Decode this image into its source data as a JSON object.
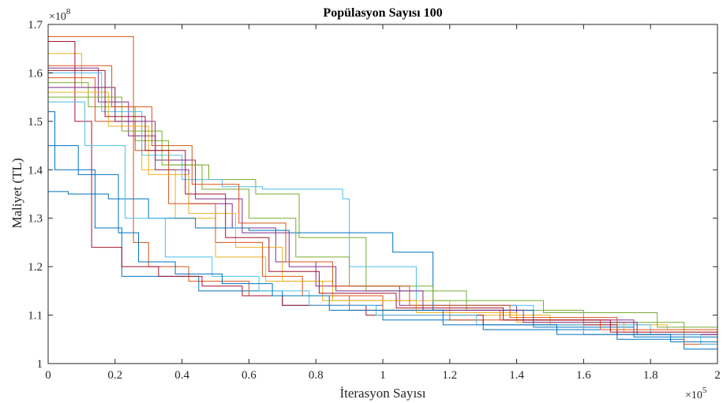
{
  "chart_data": {
    "type": "line",
    "title": "Popülasyon Sayısı 100",
    "xlabel": "İterasyon Sayısı",
    "ylabel": "Maliyet (TL)",
    "x_exponent_label": "×10",
    "x_exponent_power": "5",
    "y_exponent_label": "×10",
    "y_exponent_power": "8",
    "x_scale": 100000,
    "y_scale": 100000000,
    "xlim": [
      0,
      200000
    ],
    "ylim": [
      100000000,
      170000000
    ],
    "x_ticks": [
      0,
      20000,
      40000,
      60000,
      80000,
      100000,
      120000,
      140000,
      160000,
      180000,
      200000
    ],
    "x_tick_labels": [
      "0",
      "0.2",
      "0.4",
      "0.6",
      "0.8",
      "1",
      "1.2",
      "1.4",
      "1.6",
      "1.8",
      "2"
    ],
    "y_ticks": [
      100000000,
      110000000,
      120000000,
      130000000,
      140000000,
      150000000,
      160000000,
      170000000
    ],
    "y_tick_labels": [
      "1",
      "1.1",
      "1.2",
      "1.3",
      "1.4",
      "1.5",
      "1.6",
      "1.7"
    ],
    "grid": false,
    "legend": "none",
    "line_style": "step",
    "series": [
      {
        "color": "#0072BD",
        "x": [
          0,
          2000,
          14000,
          22000,
          45000,
          70000,
          100000,
          130000,
          170000,
          190000,
          200000
        ],
        "y": [
          152000000,
          140000000,
          128000000,
          118000000,
          115000000,
          112000000,
          109000000,
          107000000,
          105000000,
          103000000,
          102500000
        ]
      },
      {
        "color": "#D95319",
        "x": [
          0,
          24000,
          25500,
          30000,
          42000,
          60000,
          90000,
          120000,
          160000,
          190000,
          200000
        ],
        "y": [
          167500000,
          167500000,
          125000000,
          120000000,
          117000000,
          114000000,
          111000000,
          109000000,
          106000000,
          104000000,
          103000000
        ]
      },
      {
        "color": "#EDB120",
        "x": [
          0,
          10000,
          20000,
          28000,
          38000,
          50000,
          65000,
          85000,
          120000,
          150000,
          185000,
          200000
        ],
        "y": [
          164000000,
          157000000,
          150000000,
          140000000,
          130000000,
          122000000,
          117000000,
          113000000,
          110000000,
          108000000,
          107000000,
          106000000
        ]
      },
      {
        "color": "#7E2F8E",
        "x": [
          0,
          15000,
          24000,
          32000,
          42000,
          55000,
          68000,
          80000,
          105000,
          140000,
          175000,
          200000
        ],
        "y": [
          161000000,
          154000000,
          147000000,
          140000000,
          133000000,
          128000000,
          121000000,
          116000000,
          112000000,
          109000000,
          106000000,
          104000000
        ]
      },
      {
        "color": "#77AC30",
        "x": [
          0,
          12000,
          26000,
          36000,
          48000,
          62000,
          75000,
          95000,
          125000,
          160000,
          190000,
          200000
        ],
        "y": [
          158000000,
          153000000,
          146000000,
          141000000,
          138000000,
          135000000,
          126000000,
          115000000,
          111000000,
          108500000,
          106000000,
          105000000
        ]
      },
      {
        "color": "#4DBEEE",
        "x": [
          0,
          16000,
          28000,
          40000,
          52000,
          64000,
          80000,
          88000,
          90000,
          110000,
          145000,
          180000,
          200000
        ],
        "y": [
          160000000,
          152000000,
          143000000,
          138000000,
          136500000,
          136000000,
          136000000,
          134000000,
          120000000,
          112000000,
          108000000,
          106000000,
          104000000
        ]
      },
      {
        "color": "#A2142F",
        "x": [
          0,
          8000,
          13000,
          22000,
          33000,
          46000,
          58000,
          70000,
          95000,
          130000,
          170000,
          200000
        ],
        "y": [
          166500000,
          150000000,
          124000000,
          120000000,
          118000000,
          116000000,
          114000000,
          112000000,
          110000000,
          108000000,
          106000000,
          103500000
        ]
      },
      {
        "color": "#0072BD",
        "x": [
          0,
          6000,
          18000,
          30000,
          44000,
          60000,
          72000,
          88000,
          103000,
          115000,
          145000,
          175000,
          200000
        ],
        "y": [
          135500000,
          135000000,
          134000000,
          130000000,
          128000000,
          127500000,
          127000000,
          127000000,
          123000000,
          111000000,
          107500000,
          105500000,
          103000000
        ]
      },
      {
        "color": "#D95319",
        "x": [
          0,
          14000,
          26000,
          36000,
          50000,
          64000,
          76000,
          100000,
          135000,
          165000,
          200000
        ],
        "y": [
          159000000,
          150000000,
          144000000,
          133000000,
          125000000,
          118000000,
          114000000,
          111000000,
          109000000,
          107000000,
          105000000
        ]
      },
      {
        "color": "#EDB120",
        "x": [
          0,
          18000,
          30000,
          42000,
          56000,
          70000,
          82000,
          110000,
          140000,
          172000,
          200000
        ],
        "y": [
          156000000,
          149000000,
          139000000,
          131000000,
          124000000,
          117000000,
          113000000,
          110500000,
          108500000,
          106500000,
          105500000
        ]
      },
      {
        "color": "#7E2F8E",
        "x": [
          0,
          20000,
          32000,
          44000,
          58000,
          72000,
          86000,
          112000,
          142000,
          176000,
          200000
        ],
        "y": [
          157000000,
          150000000,
          142000000,
          134000000,
          127000000,
          120000000,
          115000000,
          111000000,
          108500000,
          106000000,
          104000000
        ]
      },
      {
        "color": "#77AC30",
        "x": [
          0,
          22000,
          34000,
          46000,
          60000,
          74000,
          90000,
          115000,
          148000,
          182000,
          200000
        ],
        "y": [
          155000000,
          148000000,
          141000000,
          136000000,
          130000000,
          122000000,
          116000000,
          113000000,
          110500000,
          107500000,
          105500000
        ]
      },
      {
        "color": "#4DBEEE",
        "x": [
          0,
          11000,
          23000,
          35000,
          49000,
          63000,
          78000,
          98000,
          128000,
          160000,
          195000,
          200000
        ],
        "y": [
          154000000,
          145000000,
          130000000,
          122000000,
          118000000,
          115000000,
          112000000,
          110000000,
          108000000,
          106000000,
          104000000,
          103500000
        ]
      },
      {
        "color": "#A2142F",
        "x": [
          0,
          17000,
          29000,
          41000,
          53000,
          66000,
          81000,
          104000,
          136000,
          168000,
          200000
        ],
        "y": [
          160500000,
          151000000,
          144000000,
          135000000,
          126000000,
          119000000,
          114500000,
          111500000,
          109000000,
          106500000,
          103000000
        ]
      },
      {
        "color": "#0072BD",
        "x": [
          0,
          9000,
          21000,
          27000,
          38000,
          52000,
          67000,
          84000,
          118000,
          152000,
          186000,
          200000
        ],
        "y": [
          145000000,
          139000000,
          127000000,
          121000000,
          118500000,
          116500000,
          114000000,
          111000000,
          108000000,
          106000000,
          104500000,
          103000000
        ]
      },
      {
        "color": "#D95319",
        "x": [
          0,
          19000,
          31000,
          43000,
          57000,
          71000,
          85000,
          108000,
          138000,
          170000,
          200000
        ],
        "y": [
          161500000,
          153000000,
          145000000,
          137000000,
          129000000,
          121000000,
          116000000,
          112000000,
          109500000,
          107000000,
          104500000
        ]
      }
    ]
  }
}
